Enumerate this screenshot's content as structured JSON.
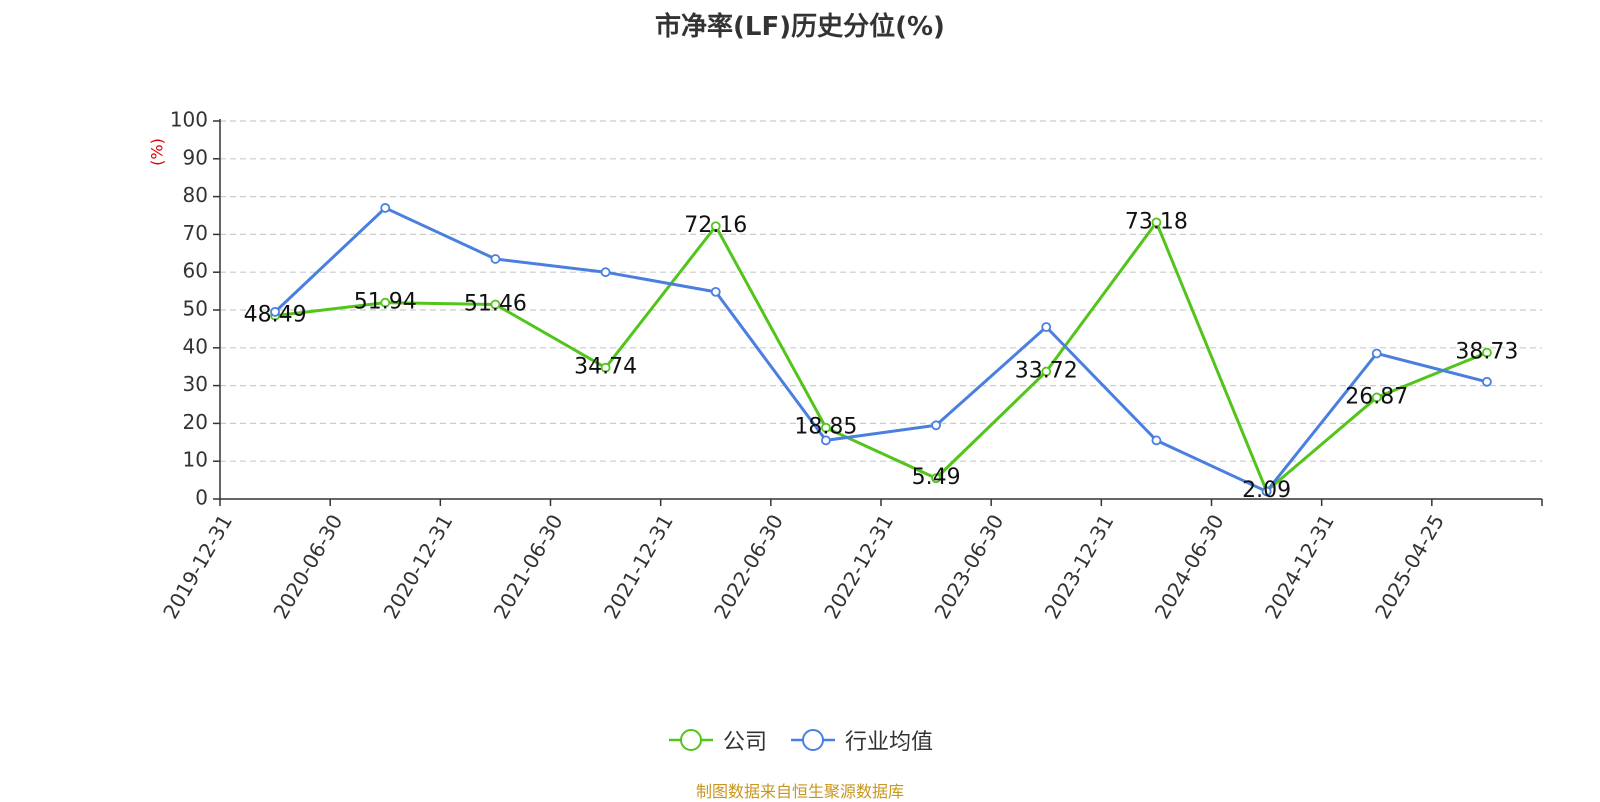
{
  "chart_data": {
    "type": "line",
    "title": "市净率(LF)历史分位(%)",
    "ylabel": "(%)",
    "xlabel": "",
    "ylim": [
      0,
      100
    ],
    "yticks": [
      0,
      10,
      20,
      30,
      40,
      50,
      60,
      70,
      80,
      90,
      100
    ],
    "grid": true,
    "legend_position": "bottom-center",
    "categories": [
      "2019-12-31",
      "2020-06-30",
      "2020-12-31",
      "2021-06-30",
      "2021-12-31",
      "2022-06-30",
      "2022-12-31",
      "2023-06-30",
      "2023-12-31",
      "2024-06-30",
      "2024-12-31",
      "2025-04-25"
    ],
    "series": [
      {
        "name": "公司",
        "color": "#52c41a",
        "values": [
          48.49,
          51.94,
          51.46,
          34.74,
          72.16,
          18.85,
          5.49,
          33.72,
          73.18,
          2.09,
          26.87,
          38.73
        ],
        "labels": [
          "48.49",
          "51.94",
          "51.46",
          "34.74",
          "72.16",
          "18.85",
          "5.49",
          "33.72",
          "73.18",
          "2.09",
          "26.87",
          "38.73"
        ]
      },
      {
        "name": "行业均值",
        "color": "#4a7fe0",
        "values": [
          49.5,
          77.0,
          63.5,
          60.0,
          54.8,
          15.5,
          19.5,
          45.5,
          15.5,
          2.0,
          38.5,
          31.0
        ]
      }
    ],
    "source": "制图数据来自恒生聚源数据库"
  }
}
